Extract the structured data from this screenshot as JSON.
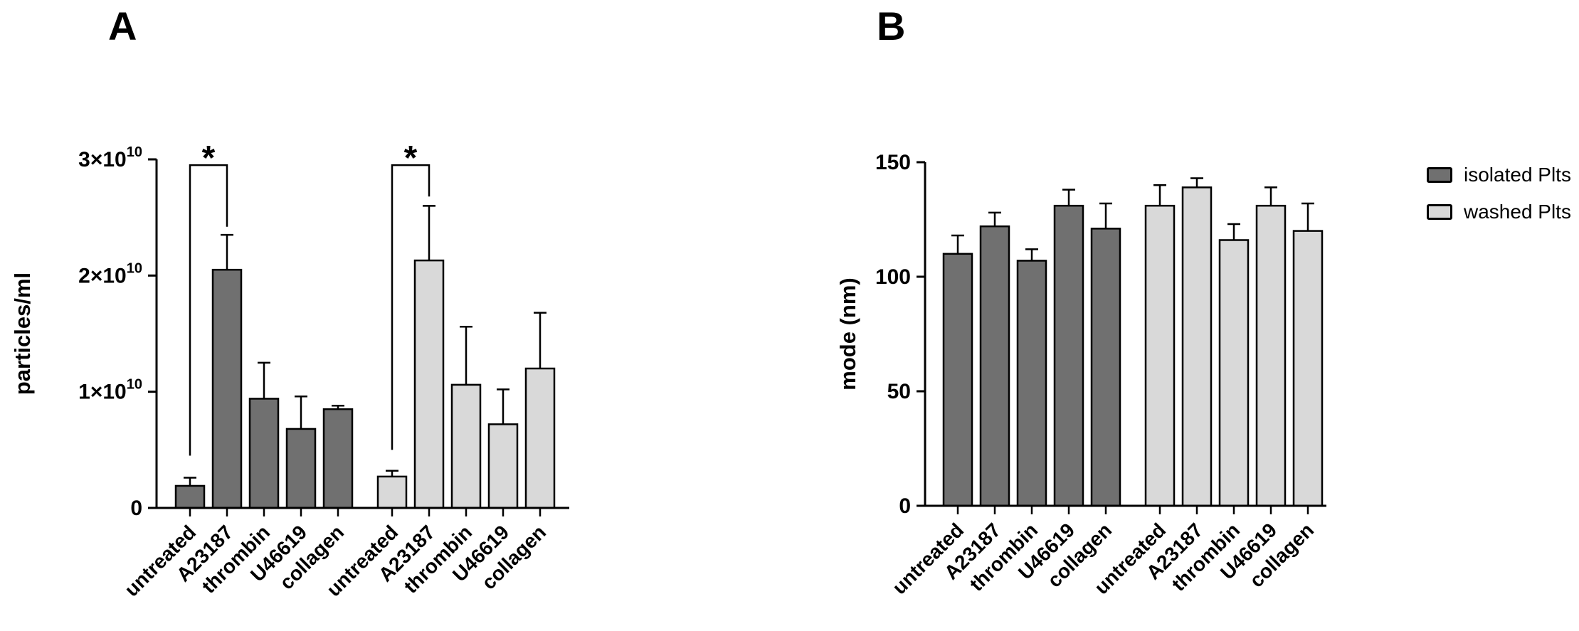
{
  "figure": {
    "background": "#ffffff"
  },
  "panels": [
    {
      "label": "A"
    },
    {
      "label": "B"
    }
  ],
  "legend": {
    "position": "top-right",
    "items": [
      {
        "label": "isolated Plts",
        "color": "#707070"
      },
      {
        "label": "washed Plts",
        "color": "#d9d9d9"
      }
    ]
  },
  "chart_data": [
    {
      "type": "bar",
      "panel": "A",
      "title": "",
      "ylabel": "particles/ml",
      "xlabel": "",
      "value_unit": "×10^10 particles/ml",
      "ylim": [
        0,
        3
      ],
      "grid": false,
      "x_label_rotation": 45,
      "categories": [
        "untreated",
        "A23187",
        "thrombin",
        "U46619",
        "collagen"
      ],
      "yticks": [
        {
          "value": 0,
          "text": "0",
          "sup": ""
        },
        {
          "value": 1,
          "text": "1×10",
          "sup": "10"
        },
        {
          "value": 2,
          "text": "2×10",
          "sup": "10"
        },
        {
          "value": 3,
          "text": "3×10",
          "sup": "10"
        }
      ],
      "series": [
        {
          "name": "isolated Plts",
          "color": "#707070",
          "values": [
            0.19,
            2.05,
            0.94,
            0.68,
            0.85
          ],
          "errors": [
            0.07,
            0.3,
            0.31,
            0.28,
            0.03
          ]
        },
        {
          "name": "washed Plts",
          "color": "#d9d9d9",
          "values": [
            0.27,
            2.13,
            1.06,
            0.72,
            1.2
          ],
          "errors": [
            0.05,
            0.47,
            0.5,
            0.3,
            0.48
          ]
        }
      ],
      "comparisons": [
        {
          "label": "*",
          "series": 0,
          "from_category": 0,
          "to_category": 1,
          "bar_top": 2.95,
          "from_drop": 0.45,
          "to_drop": 2.42
        },
        {
          "label": "*",
          "series": 1,
          "from_category": 0,
          "to_category": 1,
          "bar_top": 2.95,
          "from_drop": 0.5,
          "to_drop": 2.68
        }
      ]
    },
    {
      "type": "bar",
      "panel": "B",
      "title": "",
      "ylabel": "mode (nm)",
      "xlabel": "",
      "value_unit": "nm",
      "ylim": [
        0,
        150
      ],
      "grid": false,
      "x_label_rotation": 45,
      "categories": [
        "untreated",
        "A23187",
        "thrombin",
        "U46619",
        "collagen"
      ],
      "yticks": [
        {
          "value": 0,
          "text": "0",
          "sup": ""
        },
        {
          "value": 50,
          "text": "50",
          "sup": ""
        },
        {
          "value": 100,
          "text": "100",
          "sup": ""
        },
        {
          "value": 150,
          "text": "150",
          "sup": ""
        }
      ],
      "series": [
        {
          "name": "isolated Plts",
          "color": "#707070",
          "values": [
            110,
            122,
            107,
            131,
            121
          ],
          "errors": [
            8,
            6,
            5,
            7,
            11
          ]
        },
        {
          "name": "washed Plts",
          "color": "#d9d9d9",
          "values": [
            131,
            139,
            116,
            131,
            120
          ],
          "errors": [
            9,
            4,
            7,
            8,
            12
          ]
        }
      ],
      "comparisons": []
    }
  ]
}
